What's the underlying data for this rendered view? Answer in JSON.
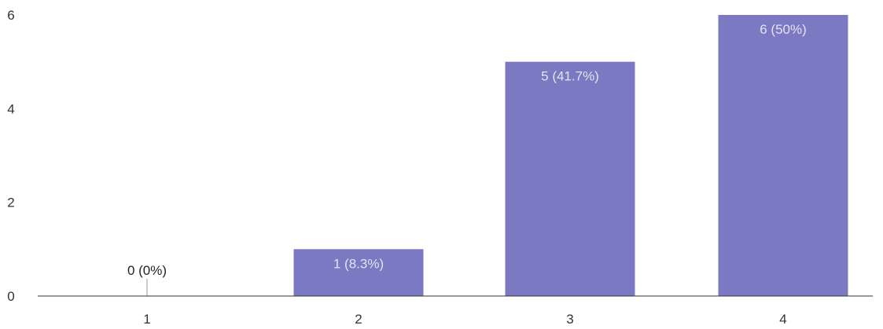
{
  "chart_data": {
    "type": "bar",
    "categories": [
      "1",
      "2",
      "3",
      "4"
    ],
    "values": [
      0,
      1,
      5,
      6
    ],
    "data_labels": [
      "0 (0%)",
      "1 (8.3%)",
      "5 (41.7%)",
      "6 (50%)"
    ],
    "y_ticks": [
      "0",
      "2",
      "4",
      "6"
    ],
    "ylim": [
      0,
      6
    ],
    "grid": false,
    "bar_color": "#7b79c2",
    "axis_color": "#333333",
    "label_color_inside": "#e3e3f4",
    "label_color_outside": "#222222"
  }
}
